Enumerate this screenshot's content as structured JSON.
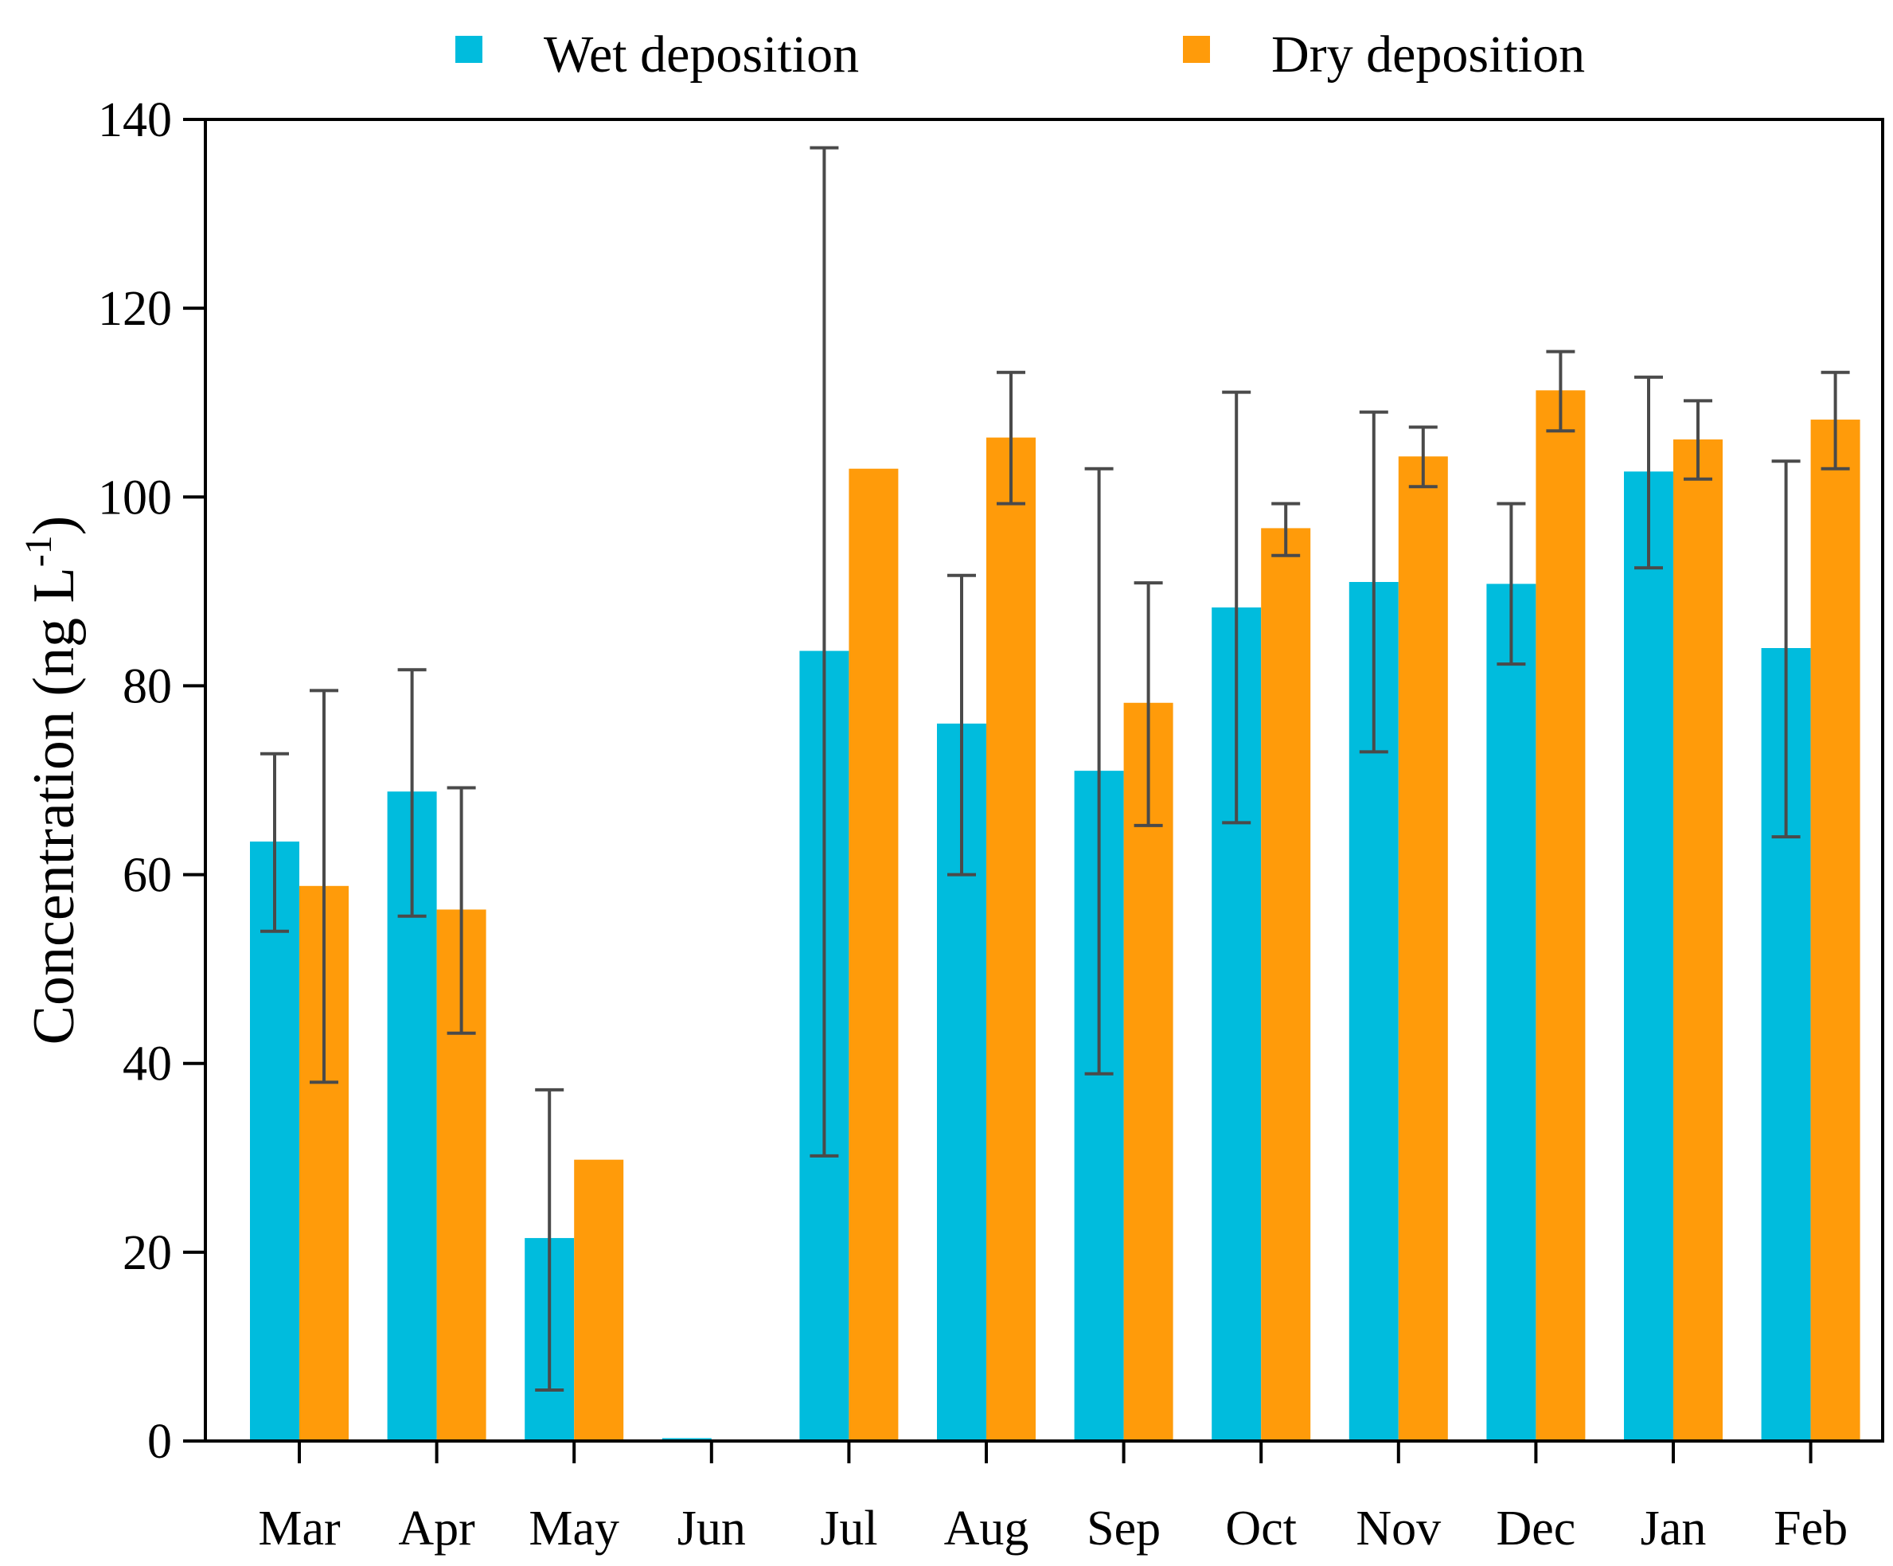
{
  "chart_data": {
    "type": "bar",
    "title": "",
    "xlabel": "",
    "ylabel": "Concentration (ng L",
    "ylabel_sup": "-1",
    "ylabel_close": ")",
    "ylim": [
      0,
      140
    ],
    "yticks": [
      0,
      20,
      40,
      60,
      80,
      100,
      120,
      140
    ],
    "legend_position": "top",
    "categories": [
      "Mar",
      "Apr",
      "May",
      "Jun",
      "Jul",
      "Aug",
      "Sep",
      "Oct",
      "Nov",
      "Dec",
      "Jan",
      "Feb"
    ],
    "series": [
      {
        "name": "Wet deposition",
        "color": "#00BCDD",
        "values": [
          63.5,
          68.8,
          21.5,
          0.3,
          83.7,
          76.0,
          71.0,
          88.3,
          91.0,
          90.8,
          102.7,
          84.0
        ],
        "err_low": [
          54.0,
          55.6,
          5.4,
          null,
          30.2,
          60.0,
          38.9,
          65.5,
          73.0,
          82.3,
          92.5,
          64.0
        ],
        "err_high": [
          72.8,
          81.7,
          37.2,
          null,
          137.0,
          91.7,
          103.0,
          111.1,
          109.0,
          99.3,
          112.7,
          103.8
        ]
      },
      {
        "name": "Dry deposition",
        "color": "#FF9B0A",
        "values": [
          58.8,
          56.3,
          29.8,
          0,
          103.0,
          106.3,
          78.2,
          96.7,
          104.3,
          111.3,
          106.1,
          108.2
        ],
        "err_low": [
          38.0,
          43.2,
          null,
          null,
          null,
          99.3,
          65.2,
          93.8,
          101.1,
          107.0,
          101.9,
          103.0
        ],
        "err_high": [
          79.5,
          69.2,
          null,
          null,
          null,
          113.2,
          90.9,
          99.3,
          107.4,
          115.4,
          110.2,
          113.2
        ]
      }
    ]
  }
}
